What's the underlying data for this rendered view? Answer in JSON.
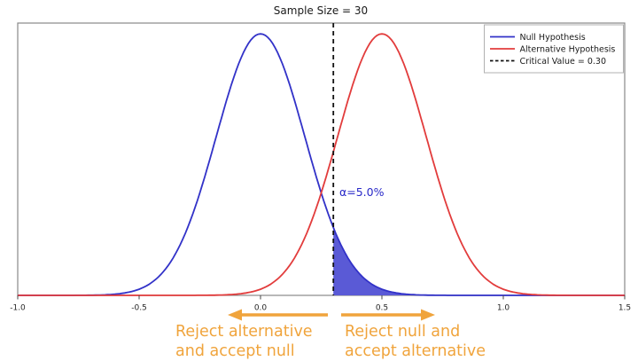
{
  "figure": {
    "background": "#ffffff",
    "spine_color": "#888888"
  },
  "chart_data": {
    "type": "line",
    "title": "Sample Size = 30",
    "xlabel": "",
    "ylabel": "",
    "xlim": [
      -1.0,
      1.5
    ],
    "ylim": [
      0,
      2.275
    ],
    "x_tick_values": [
      -1.0,
      -0.5,
      0.0,
      0.5,
      1.0,
      1.5
    ],
    "x_tick_labels": [
      "-1.0",
      "-0.5",
      "0.0",
      "0.5",
      "1.0",
      "1.5"
    ],
    "grid": false,
    "legend_position": "upper right",
    "series": [
      {
        "name": "Null Hypothesis",
        "curve": "normal_pdf",
        "mean": 0.0,
        "std": 0.1826,
        "color": "#3232c8"
      },
      {
        "name": "Alternative Hypothesis",
        "curve": "normal_pdf",
        "mean": 0.5,
        "std": 0.1826,
        "color": "#e23c3c"
      }
    ],
    "critical_value": {
      "value": 0.3,
      "label": "Critical Value = 0.30",
      "color": "#111111",
      "style": "dashed"
    },
    "alpha_annotation": {
      "text": "α=5.0%",
      "x": 0.325,
      "color": "#2828c8"
    },
    "rejection_region": {
      "x_from": 0.3,
      "x_to": 1.5,
      "under_series": "Null Hypothesis",
      "fill_color": "#5a5ad6"
    }
  },
  "legend": {
    "items": [
      {
        "label": "Null Hypothesis",
        "color": "#3232c8",
        "dash": false
      },
      {
        "label": "Alternative Hypothesis",
        "color": "#e23c3c",
        "dash": false
      },
      {
        "label": "Critical Value = 0.30",
        "color": "#111111",
        "dash": true
      }
    ]
  },
  "annotations": {
    "accent_color": "#f0a43c",
    "left": {
      "line1": "Reject alternative",
      "line2": "and accept null",
      "arrow_direction": "left"
    },
    "right": {
      "line1": "Reject null and",
      "line2": "accept alternative",
      "arrow_direction": "right"
    }
  }
}
